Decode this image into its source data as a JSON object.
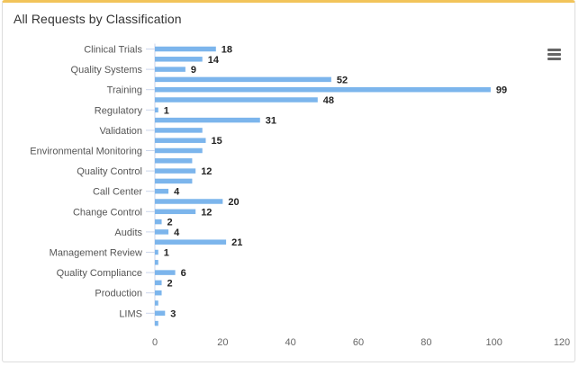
{
  "card": {
    "title": "All Requests by Classification"
  },
  "menu": {
    "icon": "hamburger-menu-icon"
  },
  "colors": {
    "bar": "#7cb5ec",
    "accent_border": "#f2c45a"
  },
  "chart_data": {
    "type": "bar",
    "orientation": "horizontal",
    "title": "All Requests by Classification",
    "xlabel": "",
    "ylabel": "",
    "xlim": [
      0,
      120
    ],
    "x_ticks": [
      0,
      20,
      40,
      60,
      80,
      100,
      120
    ],
    "grid": false,
    "categories": [
      "Clinical Trials",
      "",
      "Quality Systems",
      "",
      "Training",
      "",
      "Regulatory",
      "",
      "Validation",
      "",
      "Environmental Monitoring",
      "",
      "Quality Control",
      "",
      "Call Center",
      "",
      "Change Control",
      "",
      "Audits",
      "",
      "Management Review",
      "",
      "Quality Compliance",
      "",
      "Production",
      "",
      "LIMS",
      ""
    ],
    "values": [
      18,
      14,
      9,
      52,
      99,
      48,
      1,
      31,
      14,
      15,
      14,
      11,
      12,
      11,
      4,
      20,
      12,
      2,
      4,
      21,
      1,
      1,
      6,
      2,
      2,
      1,
      3,
      1
    ],
    "data_labels": [
      "18",
      "14",
      "9",
      "52",
      "99",
      "48",
      "1",
      "31",
      "",
      "15",
      "",
      "",
      "12",
      "",
      "4",
      "20",
      "12",
      "2",
      "4",
      "21",
      "1",
      "",
      "6",
      "2",
      "",
      "",
      "3",
      ""
    ]
  }
}
